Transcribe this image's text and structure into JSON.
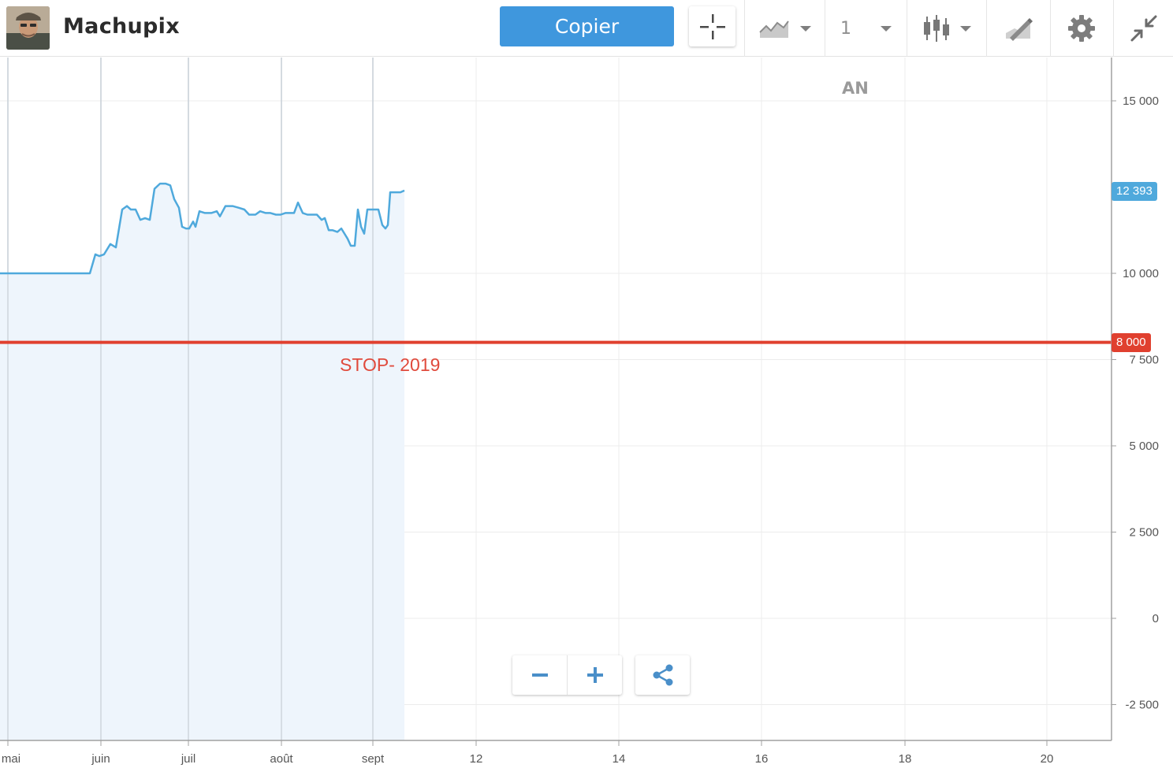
{
  "header": {
    "username": "Machupix",
    "copy_label": "Copier",
    "period_value": "1"
  },
  "chart_overlay": {
    "period_label": "AN",
    "current_price": "12 393",
    "stop_price": "8 000",
    "stop_label": "STOP- 2019"
  },
  "colors": {
    "accent": "#3f97dd",
    "series_line": "#4fa9dc",
    "series_fill": "#eef5fc",
    "stop_line": "#e0402f"
  },
  "icons": [
    "crosshair-icon",
    "chart-type-icon",
    "chevron-down-icon",
    "candlestick-icon",
    "drawing-tool-icon",
    "gear-icon",
    "collapse-icon",
    "minus-icon",
    "plus-icon",
    "share-icon"
  ],
  "chart_data": {
    "type": "area",
    "yticks": [
      "15 000",
      "10 000",
      "7 500",
      "5 000",
      "2 500",
      "0",
      "-2 500"
    ],
    "ytick_values": [
      15000,
      10000,
      7500,
      5000,
      2500,
      0,
      -2500
    ],
    "xticks": [
      "mai",
      "juin",
      "juil",
      "août",
      "sept",
      "12",
      "14",
      "16",
      "18",
      "20"
    ],
    "ylim": [
      -3500,
      16500
    ],
    "grid": true,
    "series": [
      {
        "name": "",
        "points": [
          [
            0,
            10000
          ],
          [
            114,
            10000
          ],
          [
            121,
            10550
          ],
          [
            126,
            10500
          ],
          [
            132,
            10550
          ],
          [
            140,
            10850
          ],
          [
            147,
            10750
          ],
          [
            155,
            11850
          ],
          [
            161,
            11950
          ],
          [
            166,
            11850
          ],
          [
            172,
            11850
          ],
          [
            178,
            11550
          ],
          [
            184,
            11600
          ],
          [
            190,
            11550
          ],
          [
            196,
            12450
          ],
          [
            203,
            12600
          ],
          [
            210,
            12600
          ],
          [
            216,
            12550
          ],
          [
            221,
            12150
          ],
          [
            227,
            11900
          ],
          [
            231,
            11350
          ],
          [
            236,
            11300
          ],
          [
            240,
            11300
          ],
          [
            245,
            11500
          ],
          [
            248,
            11350
          ],
          [
            253,
            11800
          ],
          [
            260,
            11750
          ],
          [
            268,
            11750
          ],
          [
            275,
            11800
          ],
          [
            279,
            11650
          ],
          [
            286,
            11950
          ],
          [
            295,
            11950
          ],
          [
            303,
            11900
          ],
          [
            310,
            11850
          ],
          [
            316,
            11700
          ],
          [
            324,
            11700
          ],
          [
            330,
            11800
          ],
          [
            337,
            11750
          ],
          [
            343,
            11750
          ],
          [
            350,
            11700
          ],
          [
            356,
            11700
          ],
          [
            362,
            11750
          ],
          [
            368,
            11750
          ],
          [
            373,
            11750
          ],
          [
            378,
            12050
          ],
          [
            384,
            11750
          ],
          [
            390,
            11700
          ],
          [
            396,
            11700
          ],
          [
            402,
            11700
          ],
          [
            408,
            11550
          ],
          [
            412,
            11600
          ],
          [
            417,
            11250
          ],
          [
            422,
            11250
          ],
          [
            428,
            11200
          ],
          [
            433,
            11300
          ],
          [
            437,
            11150
          ],
          [
            441,
            11000
          ],
          [
            445,
            10800
          ],
          [
            450,
            10800
          ],
          [
            454,
            11850
          ],
          [
            458,
            11350
          ],
          [
            462,
            11150
          ],
          [
            466,
            11850
          ],
          [
            472,
            11850
          ],
          [
            480,
            11850
          ],
          [
            485,
            11400
          ],
          [
            489,
            11300
          ],
          [
            492,
            11400
          ],
          [
            495,
            12350
          ],
          [
            502,
            12350
          ],
          [
            508,
            12350
          ],
          [
            513,
            12400
          ]
        ]
      }
    ],
    "horizontal_line": {
      "value": 8000,
      "label": "STOP- 2019"
    }
  }
}
